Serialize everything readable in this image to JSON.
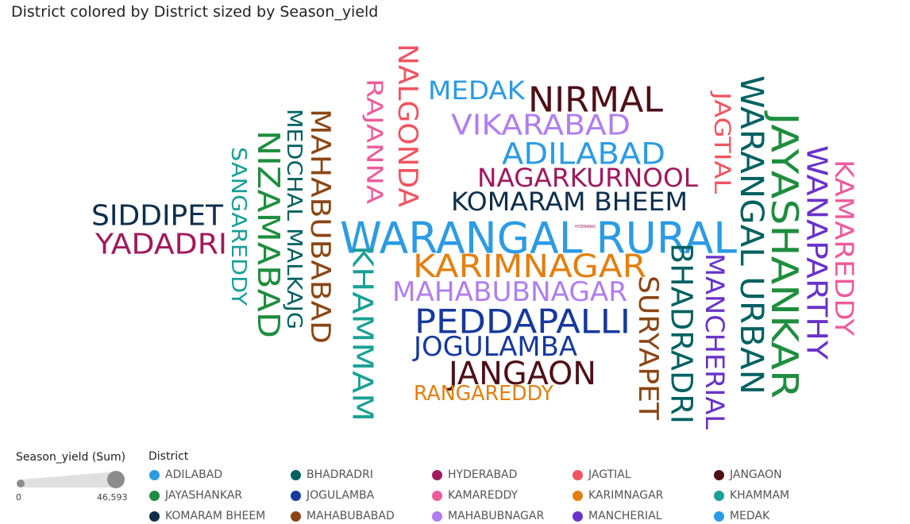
{
  "title": "District colored by District sized by Season_yield",
  "size_legend": {
    "title": "Season_yield (Sum)",
    "min_label": "0",
    "max_label": "46,593"
  },
  "legend": {
    "title": "District",
    "items": [
      {
        "label": "ADILABAD",
        "color": "#2C9BE4"
      },
      {
        "label": "BHADRADRI",
        "color": "#006160"
      },
      {
        "label": "HYDERABAD",
        "color": "#A0195C"
      },
      {
        "label": "JAGTIAL",
        "color": "#F05461"
      },
      {
        "label": "JANGAON",
        "color": "#4F0F16"
      },
      {
        "label": "JAYASHANKAR",
        "color": "#1E8E3E"
      },
      {
        "label": "JOGULAMBA",
        "color": "#16399C"
      },
      {
        "label": "KAMAREDDY",
        "color": "#EE5B9B"
      },
      {
        "label": "KARIMNAGAR",
        "color": "#E37F0E"
      },
      {
        "label": "KHAMMAM",
        "color": "#1AA096"
      },
      {
        "label": "KOMARAM BHEEM",
        "color": "#0E2E4B"
      },
      {
        "label": "MAHABUBABAD",
        "color": "#8A4615"
      },
      {
        "label": "MAHABUBNAGAR",
        "color": "#B07EF0"
      },
      {
        "label": "MANCHERIAL",
        "color": "#6933C8"
      },
      {
        "label": "MEDAK",
        "color": "#2C9BE4"
      }
    ]
  },
  "chart_data": {
    "type": "wordcloud",
    "title": "District colored by District sized by Season_yield",
    "size_measure": "Season_yield (Sum)",
    "size_range": [
      0,
      46593
    ],
    "words": [
      {
        "text": "WARANGAL RURAL",
        "color": "#2C9BE4",
        "size": 46593
      },
      {
        "text": "JAYASHANKAR",
        "color": "#1E8E3E",
        "size": 31000
      },
      {
        "text": "NIZAMABAD",
        "color": "#1E8E3E",
        "size": 29000
      },
      {
        "text": "PEDDAPALLI",
        "color": "#16399C",
        "size": 29000
      },
      {
        "text": "KARIMNAGAR",
        "color": "#E37F0E",
        "size": 27000
      },
      {
        "text": "WARANGAL URBAN",
        "color": "#006160",
        "size": 27000
      },
      {
        "text": "NIRMAL",
        "color": "#4F0F16",
        "size": 27000
      },
      {
        "text": "JANGAON",
        "color": "#4F0F16",
        "size": 27000
      },
      {
        "text": "ADILABAD",
        "color": "#2C9BE4",
        "size": 26000
      },
      {
        "text": "MAHABUBABAD",
        "color": "#8A4615",
        "size": 26000
      },
      {
        "text": "BHADRADRI",
        "color": "#006160",
        "size": 25000
      },
      {
        "text": "KHAMMAM",
        "color": "#1AA096",
        "size": 25000
      },
      {
        "text": "SIDDIPET",
        "color": "#0E2E4B",
        "size": 25000
      },
      {
        "text": "YADADRI",
        "color": "#A0195C",
        "size": 25000
      },
      {
        "text": "VIKARABAD",
        "color": "#B07EF0",
        "size": 25000
      },
      {
        "text": "SURYAPET",
        "color": "#8A4615",
        "size": 23000
      },
      {
        "text": "WANAPARTHY",
        "color": "#6933C8",
        "size": 23000
      },
      {
        "text": "NALGONDA",
        "color": "#F05461",
        "size": 23000
      },
      {
        "text": "MEDAK",
        "color": "#2C9BE4",
        "size": 23000
      },
      {
        "text": "MAHABUBNAGAR",
        "color": "#B07EF0",
        "size": 22000
      },
      {
        "text": "KOMARAM BHEEM",
        "color": "#0E2E4B",
        "size": 21000
      },
      {
        "text": "NAGARKURNOOL",
        "color": "#A0195C",
        "size": 21000
      },
      {
        "text": "JOGULAMBA",
        "color": "#16399C",
        "size": 21000
      },
      {
        "text": "MANCHERIAL",
        "color": "#6933C8",
        "size": 21000
      },
      {
        "text": "KAMAREDDY",
        "color": "#EE5B9B",
        "size": 20000
      },
      {
        "text": "MEDCHAL MALKAJG",
        "color": "#006160",
        "size": 18000
      },
      {
        "text": "SANGAREDDY",
        "color": "#1AA096",
        "size": 18000
      },
      {
        "text": "RAJANNA",
        "color": "#EE5B9B",
        "size": 18000
      },
      {
        "text": "JAGTIAL",
        "color": "#F05461",
        "size": 18000
      },
      {
        "text": "RANGAREDDY",
        "color": "#E37F0E",
        "size": 17000
      },
      {
        "text": "HYDERABAD",
        "color": "#A0195C",
        "size": 300
      }
    ]
  }
}
